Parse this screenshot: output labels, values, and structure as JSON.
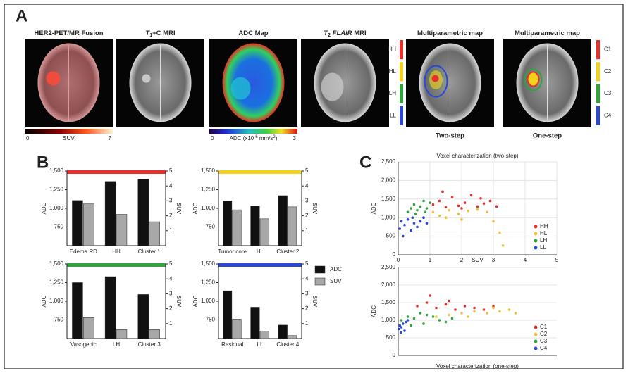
{
  "panel_labels": [
    "A",
    "B",
    "C"
  ],
  "panel_a": {
    "images": [
      {
        "title_parts": [
          {
            "text": "HER2-PET/MR Fusion"
          }
        ]
      },
      {
        "title_parts": [
          {
            "text": "T",
            "italic": true
          },
          {
            "text": "1",
            "sub": true
          },
          {
            "text": "+C MRI"
          }
        ]
      },
      {
        "title_parts": [
          {
            "text": "ADC Map"
          }
        ]
      },
      {
        "title_parts": [
          {
            "text": "T",
            "italic": true
          },
          {
            "text": "2",
            "sub": true
          },
          {
            "text": " FLAIR",
            "italic": true
          },
          {
            "text": " MRI"
          }
        ]
      },
      {
        "title_parts": [
          {
            "text": "Multiparametric map"
          }
        ],
        "caption": "Two-step"
      },
      {
        "title_parts": [
          {
            "text": "Multiparametric map"
          }
        ],
        "caption": "One-step"
      }
    ],
    "suv_colorbar": {
      "min": 0,
      "label": "SUV",
      "max": 7
    },
    "adc_colorbar": {
      "min": 0,
      "label_parts": [
        {
          "text": "ADC (x10"
        },
        {
          "text": "-6",
          "sup": true
        },
        {
          "text": " mm/s"
        },
        {
          "text": "2",
          "sup": true
        },
        {
          "text": ")"
        }
      ],
      "max": 3
    },
    "two_step_classes": [
      {
        "name": "HH",
        "color": "#e8302a"
      },
      {
        "name": "HL",
        "color": "#f3d21c"
      },
      {
        "name": "LH",
        "color": "#2ea43a"
      },
      {
        "name": "LL",
        "color": "#2a47d6"
      }
    ],
    "one_step_classes": [
      {
        "name": "C1",
        "color": "#e8302a"
      },
      {
        "name": "C2",
        "color": "#f3d21c"
      },
      {
        "name": "C3",
        "color": "#2ea43a"
      },
      {
        "name": "C4",
        "color": "#2a47d6"
      }
    ]
  },
  "bar_legend": [
    {
      "name": "ADC",
      "color": "#111111"
    },
    {
      "name": "SUV",
      "color": "#a8a8a8"
    }
  ],
  "chart_data": [
    {
      "type": "bar",
      "color": "#e8302a",
      "categories": [
        "Edema RD",
        "HH",
        "Cluster 1"
      ],
      "series": [
        {
          "color": "#111111",
          "values": [
            1105,
            1360,
            1390
          ]
        },
        {
          "color": "#a8a8a8",
          "axis": "y2",
          "values": [
            2.8,
            2.1,
            1.6
          ]
        }
      ],
      "ylabel": "ADC",
      "y2label": "SUV",
      "ylim": [
        500,
        1500
      ],
      "yticks": [
        750,
        {
          "value": 1000,
          "label": "1,000"
        },
        {
          "value": 1250,
          "label": "1,250"
        },
        {
          "value": 1500,
          "label": "1,500"
        }
      ],
      "y2lim": [
        0,
        5
      ],
      "y2ticks": [
        1,
        2,
        3,
        4,
        5
      ]
    },
    {
      "type": "bar",
      "color": "#f3d21c",
      "categories": [
        "Tumor core",
        "HL",
        "Cluster 2"
      ],
      "series": [
        {
          "color": "#111111",
          "values": [
            1100,
            1030,
            1170
          ]
        },
        {
          "color": "#a8a8a8",
          "axis": "y2",
          "values": [
            2.4,
            1.8,
            2.6
          ]
        }
      ],
      "ylabel": "ADC",
      "y2label": "SUV",
      "ylim": [
        500,
        1500
      ],
      "yticks": [
        750,
        {
          "value": 1000,
          "label": "1,000"
        },
        {
          "value": 1250,
          "label": "1,250"
        },
        {
          "value": 1500,
          "label": "1,500"
        }
      ],
      "y2lim": [
        0,
        5
      ],
      "y2ticks": [
        1,
        2,
        3,
        4,
        5
      ]
    },
    {
      "type": "bar",
      "color": "#2ea43a",
      "categories": [
        "Vasogenic",
        "LH",
        "Cluster 3"
      ],
      "series": [
        {
          "color": "#111111",
          "values": [
            1250,
            1330,
            1090
          ]
        },
        {
          "color": "#a8a8a8",
          "axis": "y2",
          "values": [
            1.4,
            0.6,
            0.6
          ]
        }
      ],
      "ylabel": "ADC",
      "y2label": "SUV",
      "ylim": [
        500,
        1500
      ],
      "yticks": [
        750,
        {
          "value": 1000,
          "label": "1,000"
        },
        {
          "value": 1250,
          "label": "1,250"
        },
        {
          "value": 1500,
          "label": "1,500"
        }
      ],
      "y2lim": [
        0,
        5
      ],
      "y2ticks": [
        1,
        2,
        3,
        4,
        5
      ]
    },
    {
      "type": "bar",
      "color": "#2a47d6",
      "categories": [
        "Residual",
        "LL",
        "Cluster 4"
      ],
      "series": [
        {
          "color": "#111111",
          "values": [
            1140,
            920,
            680
          ]
        },
        {
          "color": "#a8a8a8",
          "axis": "y2",
          "values": [
            1.3,
            0.5,
            0.2
          ]
        }
      ],
      "ylabel": "ADC",
      "y2label": "SUV",
      "ylim": [
        500,
        1500
      ],
      "yticks": [
        750,
        {
          "value": 1000,
          "label": "1,000"
        },
        {
          "value": 1250,
          "label": "1,250"
        },
        {
          "value": 1500,
          "label": "1,500"
        }
      ],
      "y2lim": [
        0,
        5
      ],
      "y2ticks": [
        1,
        2,
        3,
        4,
        5
      ]
    },
    {
      "type": "scatter",
      "title": "Voxel characterization (two-step)",
      "title_position": "top",
      "xlabel": "SUV",
      "ylabel": "ADC",
      "xlim": [
        0,
        5
      ],
      "xticks": [
        0,
        1,
        2,
        3,
        4,
        5
      ],
      "ylim": [
        0,
        2500
      ],
      "yticks": [
        0,
        500,
        {
          "value": 1000,
          "label": "1,000"
        },
        {
          "value": 1500,
          "label": "1,500"
        },
        {
          "value": 2000,
          "label": "2,000"
        },
        {
          "value": 2500,
          "label": "2,500"
        }
      ],
      "legend": "lower right",
      "series": [
        {
          "name": "HH",
          "color": "#e8302a",
          "x": [
            1.1,
            1.3,
            1.5,
            1.7,
            1.9,
            2.1,
            2.3,
            2.5,
            2.7,
            2.9,
            3.1,
            1.4,
            2.0,
            2.6
          ],
          "values": [
            1350,
            1450,
            1280,
            1550,
            1320,
            1400,
            1600,
            1300,
            1380,
            1450,
            1300,
            1700,
            1250,
            1520
          ]
        },
        {
          "name": "HL",
          "color": "#f0c23a",
          "x": [
            1.1,
            1.3,
            1.6,
            1.9,
            2.2,
            2.5,
            2.8,
            3.0,
            3.2,
            3.3,
            2.0,
            1.5
          ],
          "values": [
            1150,
            1050,
            1200,
            1100,
            1180,
            1220,
            1150,
            900,
            600,
            250,
            950,
            1000
          ]
        },
        {
          "name": "LH",
          "color": "#2ea43a",
          "x": [
            0.3,
            0.4,
            0.5,
            0.6,
            0.7,
            0.8,
            0.9,
            1.0,
            0.55,
            0.85
          ],
          "values": [
            1150,
            1250,
            1350,
            1200,
            1300,
            1450,
            1250,
            1400,
            1100,
            1150
          ]
        },
        {
          "name": "LL",
          "color": "#2a47d6",
          "x": [
            0.05,
            0.1,
            0.2,
            0.3,
            0.4,
            0.5,
            0.6,
            0.7,
            0.8,
            0.9,
            0.15,
            0.45
          ],
          "values": [
            700,
            900,
            800,
            950,
            650,
            850,
            750,
            900,
            1000,
            850,
            500,
            1000
          ]
        }
      ]
    },
    {
      "type": "scatter",
      "title": "Voxel characterization (one-step)",
      "title_position": "bottom",
      "ylabel": "ADC",
      "xlim": [
        0,
        5
      ],
      "ylim": [
        0,
        2500
      ],
      "yticks": [
        0,
        500,
        {
          "value": 1000,
          "label": "1,000"
        },
        {
          "value": 1500,
          "label": "1,500"
        },
        {
          "value": 2000,
          "label": "2,000"
        },
        {
          "value": 2500,
          "label": "2,500"
        }
      ],
      "legend": "lower right",
      "series": [
        {
          "name": "C1",
          "color": "#e8302a",
          "x": [
            0.6,
            0.9,
            1.2,
            1.5,
            1.8,
            2.1,
            2.4,
            2.7,
            3.0,
            1.0,
            1.6
          ],
          "values": [
            1400,
            1500,
            1350,
            1450,
            1300,
            1400,
            1350,
            1300,
            1400,
            1700,
            1550
          ]
        },
        {
          "name": "C2",
          "color": "#f0c23a",
          "x": [
            1.2,
            1.6,
            2.0,
            2.4,
            2.8,
            3.2,
            3.5,
            3.7,
            2.2,
            3.0
          ],
          "values": [
            1100,
            1150,
            1200,
            1250,
            1200,
            1250,
            1300,
            1200,
            1100,
            1350
          ]
        },
        {
          "name": "C3",
          "color": "#2ea43a",
          "x": [
            0.1,
            0.3,
            0.5,
            0.7,
            0.9,
            1.1,
            1.3,
            1.5,
            0.4,
            0.8,
            1.7
          ],
          "values": [
            1000,
            1100,
            1050,
            1200,
            1150,
            1100,
            1000,
            950,
            850,
            900,
            1050
          ]
        },
        {
          "name": "C4",
          "color": "#2a47d6",
          "x": [
            0.02,
            0.05,
            0.1,
            0.15,
            0.2,
            0.25,
            0.08,
            0.3
          ],
          "values": [
            750,
            850,
            800,
            900,
            700,
            950,
            650,
            1000
          ]
        }
      ]
    }
  ]
}
